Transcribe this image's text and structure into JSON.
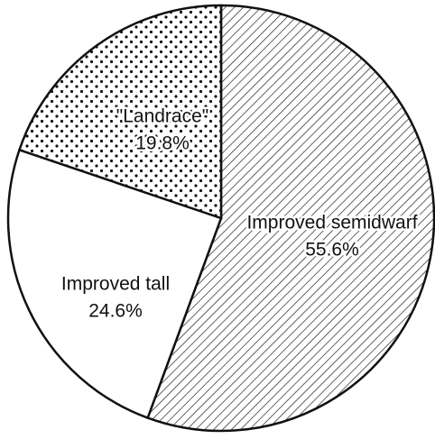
{
  "chart_data": {
    "type": "pie",
    "categories": [
      "Improved semidwarf",
      "Improved tall",
      "\"Landrace\""
    ],
    "values": [
      55.6,
      24.6,
      19.8
    ],
    "value_labels": [
      "55.6%",
      "24.6%",
      "19.8%"
    ]
  }
}
